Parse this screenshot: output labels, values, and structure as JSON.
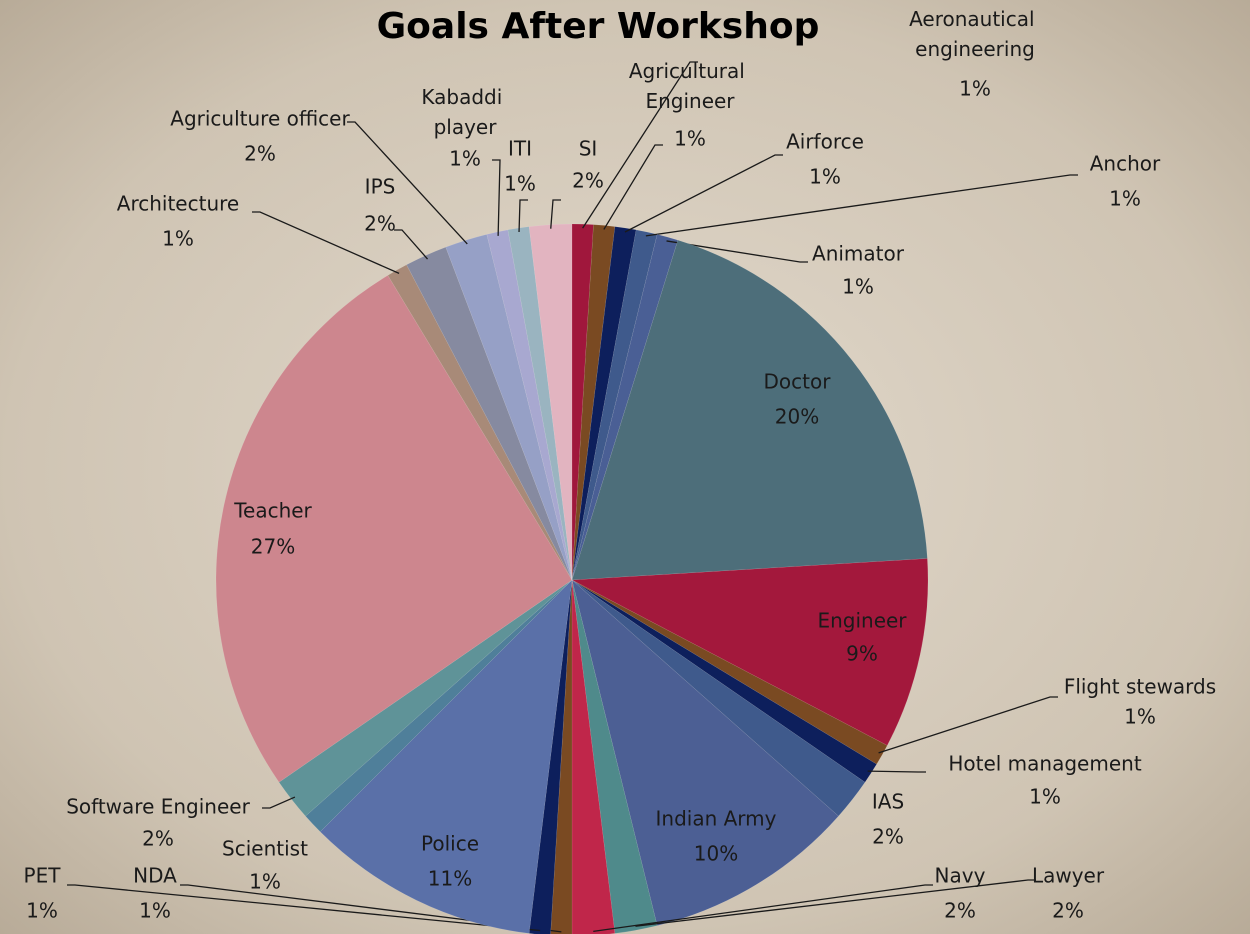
{
  "chart_data": {
    "type": "pie",
    "title": "Goals After Workshop",
    "categories": [
      "Aeronautical engineering",
      "Agricultural Engineer",
      "Airforce",
      "Anchor",
      "Animator",
      "Doctor",
      "Engineer",
      "Flight stewards",
      "Hotel management",
      "IAS",
      "Indian Army",
      "Lawyer",
      "Navy",
      "NDA",
      "PET",
      "Police",
      "Scientist",
      "Software Engineer",
      "Teacher",
      "Architecture",
      "IPS",
      "Agriculture officer",
      "Kabaddi player",
      "ITI",
      "SI"
    ],
    "values": [
      1,
      1,
      1,
      1,
      1,
      20,
      9,
      1,
      1,
      2,
      10,
      2,
      2,
      1,
      1,
      11,
      1,
      2,
      27,
      1,
      2,
      2,
      1,
      1,
      2
    ],
    "value_labels": [
      "1%",
      "1%",
      "1%",
      "1%",
      "1%",
      "20%",
      "9%",
      "1%",
      "1%",
      "2%",
      "10%",
      "2%",
      "2%",
      "1%",
      "1%",
      "11%",
      "1%",
      "2%",
      "27%",
      "1%",
      "2%",
      "2%",
      "1%",
      "1%",
      "2%"
    ],
    "colors": [
      "#a0173c",
      "#7a4a22",
      "#0d1f5c",
      "#3f5a8c",
      "#4a5f95",
      "#4d6e7a",
      "#a3183c",
      "#7a4a22",
      "#0d1f5c",
      "#3f5a8c",
      "#4c5f94",
      "#4f8a8b",
      "#c0264a",
      "#7a4a22",
      "#0d1f5c",
      "#5a70a8",
      "#4f7f9a",
      "#5f9398",
      "#cd868e",
      "#a88a78",
      "#868aa0",
      "#96a0c6",
      "#a8a8d0",
      "#9ab4c0",
      "#e2b4c0"
    ]
  }
}
